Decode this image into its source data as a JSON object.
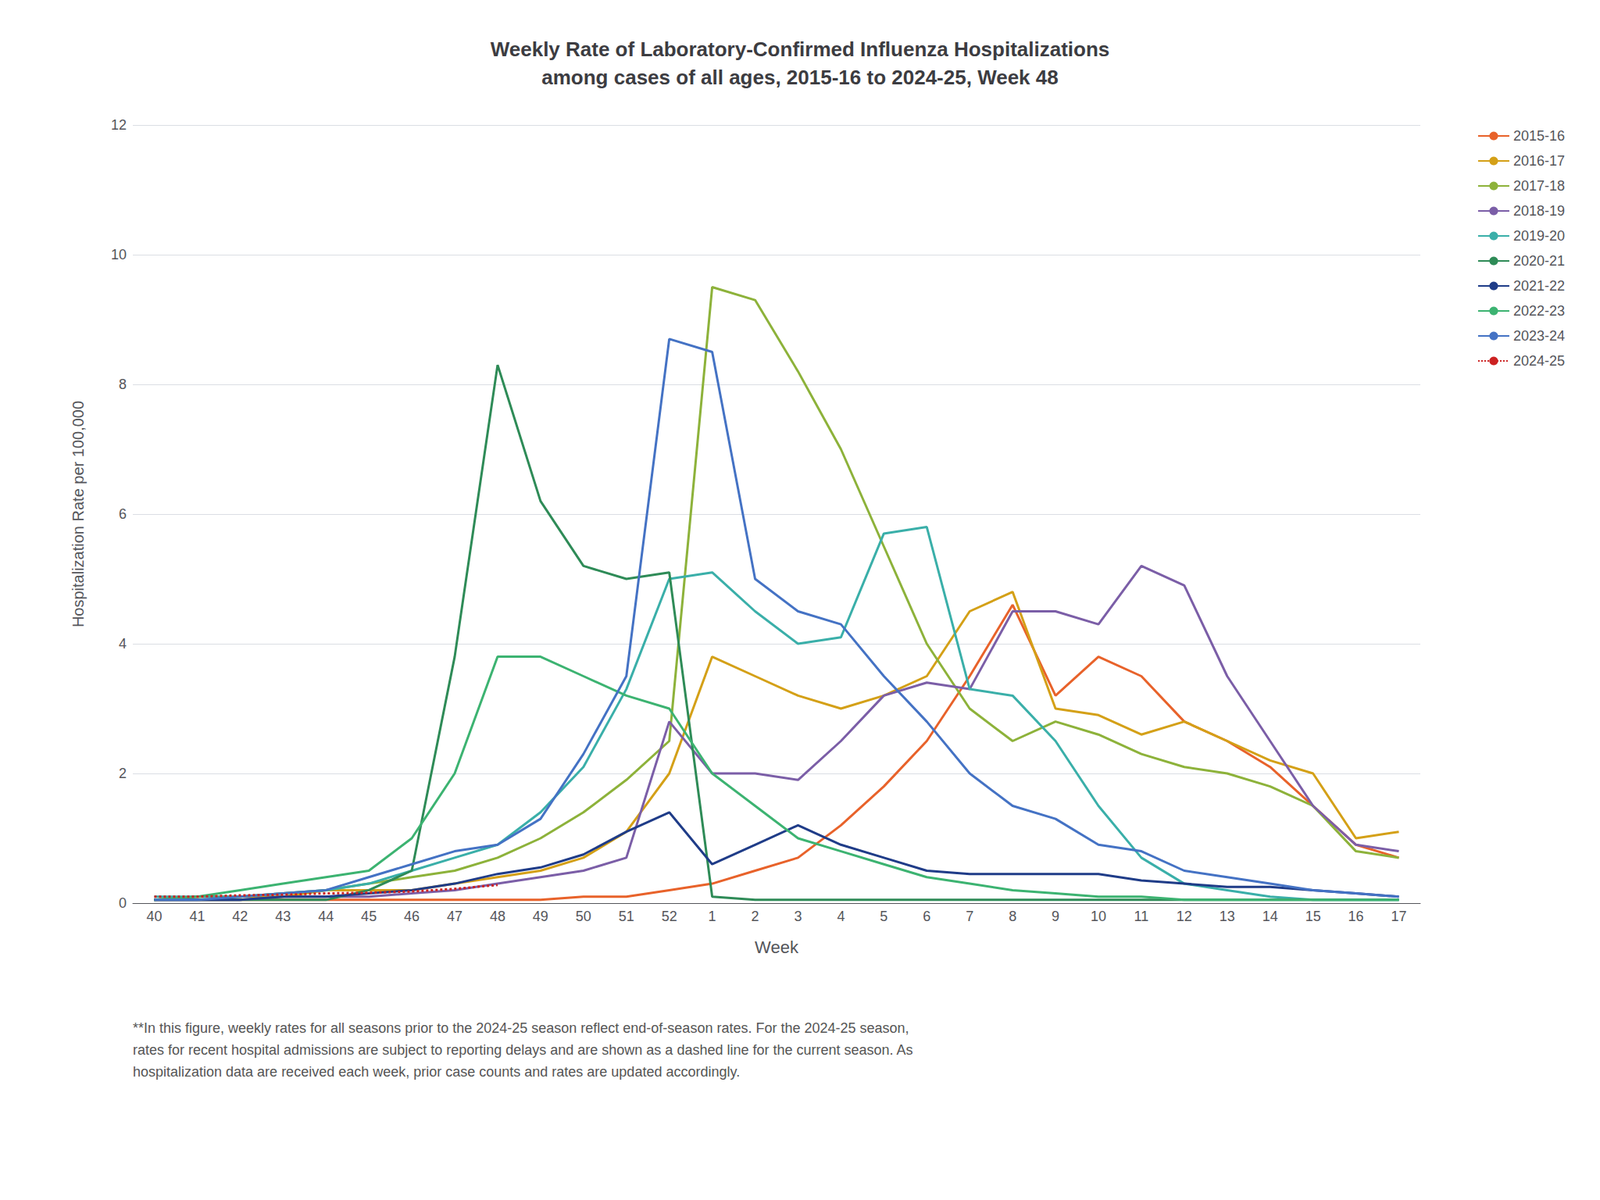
{
  "chart_data": {
    "type": "line",
    "title": "Weekly Rate of Laboratory-Confirmed Influenza Hospitalizations\namong cases of all ages, 2015-16 to 2024-25, Week 48",
    "x_label": "Week",
    "y_label": "Hospitalization Rate per 100,000",
    "annotations": [
      "**In this figure, weekly rates for all seasons prior to the 2024-25 season reflect end-of-season rates. For the 2024-25 season,\nrates for recent hospital admissions are subject to reporting delays and are shown as a dashed line for the current season. As\nhospitalization data are received each week, prior case counts and rates are updated accordingly."
    ],
    "categories": [
      "40",
      "41",
      "42",
      "43",
      "44",
      "45",
      "46",
      "47",
      "48",
      "49",
      "50",
      "51",
      "52",
      "1",
      "2",
      "3",
      "4",
      "5",
      "6",
      "7",
      "8",
      "9",
      "10",
      "11",
      "12",
      "13",
      "14",
      "15",
      "16",
      "17"
    ],
    "series": [
      {
        "name": "2015-16",
        "color": "#E8622A",
        "values": [
          0.05,
          0.05,
          0.05,
          0.05,
          0.05,
          0.05,
          0.05,
          0.05,
          0.05,
          0.05,
          0.1,
          0.1,
          0.2,
          0.3,
          0.5,
          0.7,
          1.2,
          1.8,
          2.5,
          3.5,
          4.6,
          3.2,
          3.8,
          3.5,
          2.8,
          2.5,
          2.1,
          1.5,
          0.9,
          0.7
        ]
      },
      {
        "name": "2016-17",
        "color": "#D4A017",
        "values": [
          0.05,
          0.1,
          0.1,
          0.1,
          0.2,
          0.2,
          0.2,
          0.3,
          0.4,
          0.5,
          0.7,
          1.1,
          2.0,
          3.8,
          3.5,
          3.2,
          3.0,
          3.2,
          3.5,
          4.5,
          4.8,
          3.0,
          2.9,
          2.6,
          2.8,
          2.5,
          2.2,
          2.0,
          1.0,
          1.1
        ]
      },
      {
        "name": "2017-18",
        "color": "#8DB23A",
        "values": [
          0.05,
          0.1,
          0.1,
          0.15,
          0.2,
          0.3,
          0.4,
          0.5,
          0.7,
          1.0,
          1.4,
          1.9,
          2.5,
          9.5,
          9.3,
          8.2,
          7.0,
          5.5,
          4.0,
          3.0,
          2.5,
          2.8,
          2.6,
          2.3,
          2.1,
          2.0,
          1.8,
          1.5,
          0.8,
          0.7
        ]
      },
      {
        "name": "2018-19",
        "color": "#7B5EA7",
        "values": [
          0.05,
          0.05,
          0.05,
          0.1,
          0.1,
          0.1,
          0.15,
          0.2,
          0.3,
          0.4,
          0.5,
          0.7,
          2.8,
          2.0,
          2.0,
          1.9,
          2.5,
          3.2,
          3.4,
          3.3,
          4.5,
          4.5,
          4.3,
          5.2,
          4.9,
          3.5,
          2.5,
          1.5,
          0.9,
          0.8
        ]
      },
      {
        "name": "2019-20",
        "color": "#3AAFA9",
        "values": [
          0.1,
          0.1,
          0.1,
          0.15,
          0.2,
          0.3,
          0.5,
          0.7,
          0.9,
          1.4,
          2.1,
          3.3,
          5.0,
          5.1,
          4.5,
          4.0,
          4.1,
          5.7,
          5.8,
          3.3,
          3.2,
          2.5,
          1.5,
          0.7,
          0.3,
          0.2,
          0.1,
          0.05,
          0.05,
          0.05
        ]
      },
      {
        "name": "2020-21",
        "color": "#2E8B57",
        "values": [
          0.05,
          0.05,
          0.05,
          0.05,
          0.05,
          0.2,
          0.5,
          3.8,
          8.3,
          6.2,
          5.2,
          5.0,
          5.1,
          0.1,
          0.05,
          0.05,
          0.05,
          0.05,
          0.05,
          0.05,
          0.05,
          0.05,
          0.05,
          0.05,
          0.05,
          0.05,
          0.05,
          0.05,
          0.05,
          0.05
        ]
      },
      {
        "name": "2021-22",
        "color": "#1F3C88",
        "values": [
          0.05,
          0.05,
          0.05,
          0.1,
          0.1,
          0.15,
          0.2,
          0.3,
          0.45,
          0.55,
          0.75,
          1.1,
          1.4,
          0.6,
          0.9,
          1.2,
          0.9,
          0.7,
          0.5,
          0.45,
          0.45,
          0.45,
          0.45,
          0.35,
          0.3,
          0.25,
          0.25,
          0.2,
          0.15,
          0.1
        ]
      },
      {
        "name": "2022-23",
        "color": "#3CB371",
        "values": [
          0.05,
          0.1,
          0.2,
          0.3,
          0.4,
          0.5,
          1.0,
          2.0,
          3.8,
          3.8,
          3.5,
          3.2,
          3.0,
          2.0,
          1.5,
          1.0,
          0.8,
          0.6,
          0.4,
          0.3,
          0.2,
          0.15,
          0.1,
          0.1,
          0.05,
          0.05,
          0.05,
          0.05,
          0.05,
          0.05
        ]
      },
      {
        "name": "2023-24",
        "color": "#4472C4",
        "values": [
          0.05,
          0.05,
          0.1,
          0.15,
          0.2,
          0.4,
          0.6,
          0.8,
          0.9,
          1.3,
          2.3,
          3.5,
          8.7,
          8.5,
          5.0,
          4.5,
          4.3,
          3.5,
          2.8,
          2.0,
          1.5,
          1.3,
          0.9,
          0.8,
          0.5,
          0.4,
          0.3,
          0.2,
          0.15,
          0.1
        ]
      },
      {
        "name": "2024-25",
        "color": "#CC2222",
        "line_style": "dotted",
        "values": [
          0.1,
          0.1,
          0.12,
          0.13,
          0.15,
          0.16,
          0.18,
          0.22,
          0.28,
          null,
          null,
          null,
          null,
          null,
          null,
          null,
          null,
          null,
          null,
          null,
          null,
          null,
          null,
          null,
          null,
          null,
          null,
          null,
          null,
          null
        ]
      }
    ],
    "ylim": [
      0,
      12
    ],
    "yticks": [
      0,
      2,
      4,
      6,
      8,
      10,
      12
    ],
    "grid": true,
    "legend": "right"
  }
}
